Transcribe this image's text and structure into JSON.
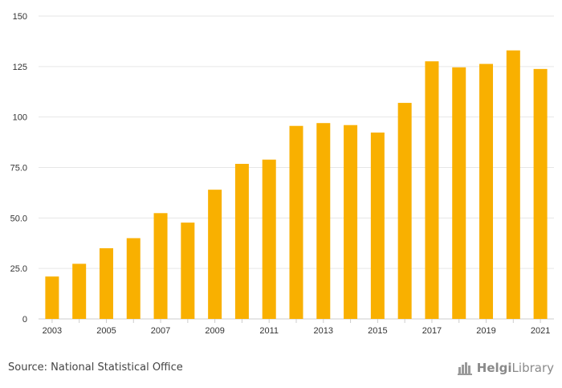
{
  "chart_data": {
    "type": "bar",
    "categories": [
      "2003",
      "2004",
      "2005",
      "2006",
      "2007",
      "2008",
      "2009",
      "2010",
      "2011",
      "2012",
      "2013",
      "2014",
      "2015",
      "2016",
      "2017",
      "2018",
      "2019",
      "2020",
      "2021"
    ],
    "values": [
      21.0,
      27.3,
      35.0,
      40.0,
      52.4,
      47.7,
      64.0,
      76.8,
      78.9,
      95.6,
      97.0,
      96.0,
      92.3,
      107.0,
      127.6,
      124.6,
      126.3,
      133.0,
      123.8
    ],
    "x_tick_labels": [
      "2003",
      "",
      "2005",
      "",
      "2007",
      "",
      "2009",
      "",
      "2011",
      "",
      "2013",
      "",
      "2015",
      "",
      "2017",
      "",
      "2019",
      "",
      "2021"
    ],
    "y_ticks": [
      0,
      25,
      50,
      75,
      100,
      125,
      150
    ],
    "y_tick_labels": [
      "0",
      "25.0",
      "50.0",
      "75.0",
      "100",
      "125",
      "150"
    ],
    "ylim": [
      0,
      150
    ],
    "bar_color": "#f9b000",
    "grid_color": "#e6e6e6",
    "title": "",
    "xlabel": "",
    "ylabel": ""
  },
  "footer": {
    "source": "Source: National Statistical Office",
    "brand_prefix": "Helgi",
    "brand_suffix": "Library"
  }
}
